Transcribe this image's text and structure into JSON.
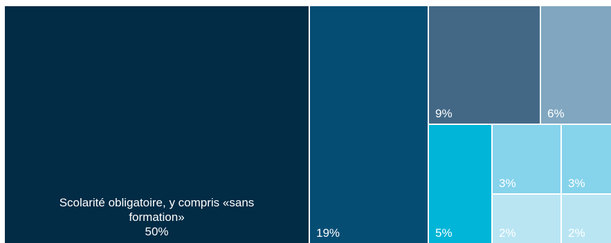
{
  "chart_data": {
    "type": "treemap",
    "title": "",
    "series": [
      {
        "name": "Scolarité obligatoire, y compris «sans formation»",
        "value": 50,
        "value_label": "50%",
        "color": "#022b45"
      },
      {
        "name": "",
        "value": 19,
        "value_label": "19%",
        "color": "#064d74"
      },
      {
        "name": "",
        "value": 9,
        "value_label": "9%",
        "color": "#436886"
      },
      {
        "name": "",
        "value": 6,
        "value_label": "6%",
        "color": "#80a6c0"
      },
      {
        "name": "",
        "value": 5,
        "value_label": "5%",
        "color": "#00b5d8"
      },
      {
        "name": "",
        "value": 3,
        "value_label": "3%",
        "color": "#86d3ec"
      },
      {
        "name": "",
        "value": 3,
        "value_label": "3%",
        "color": "#86d3ec"
      },
      {
        "name": "",
        "value": 2,
        "value_label": "2%",
        "color": "#b9e5f3"
      },
      {
        "name": "",
        "value": 2,
        "value_label": "2%",
        "color": "#b9e5f3"
      }
    ]
  }
}
